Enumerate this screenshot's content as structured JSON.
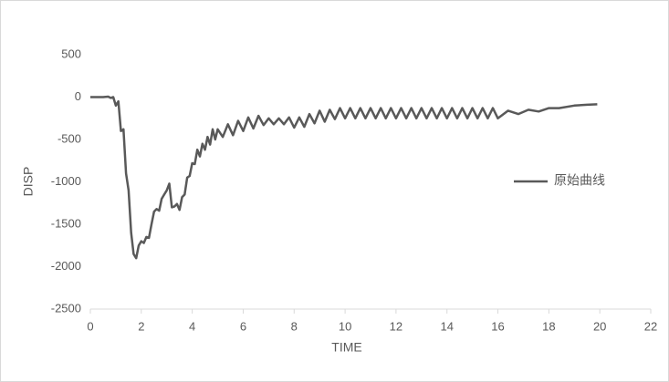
{
  "chart_data": {
    "type": "line",
    "x_label": "TIME",
    "y_label": "DISP",
    "x": [
      0,
      0.5,
      0.7,
      0.8,
      0.9,
      1.0,
      1.1,
      1.2,
      1.3,
      1.4,
      1.5,
      1.6,
      1.7,
      1.8,
      1.9,
      2.0,
      2.1,
      2.2,
      2.3,
      2.4,
      2.5,
      2.6,
      2.7,
      2.8,
      2.9,
      3.0,
      3.1,
      3.2,
      3.3,
      3.4,
      3.5,
      3.6,
      3.7,
      3.8,
      3.9,
      4.0,
      4.1,
      4.2,
      4.3,
      4.4,
      4.5,
      4.6,
      4.7,
      4.8,
      4.9,
      5.0,
      5.2,
      5.4,
      5.6,
      5.8,
      6.0,
      6.2,
      6.4,
      6.6,
      6.8,
      7.0,
      7.2,
      7.4,
      7.6,
      7.8,
      8.0,
      8.2,
      8.4,
      8.6,
      8.8,
      9.0,
      9.2,
      9.4,
      9.6,
      9.8,
      10.0,
      10.2,
      10.4,
      10.6,
      10.8,
      11.0,
      11.2,
      11.4,
      11.6,
      11.8,
      12.0,
      12.2,
      12.4,
      12.6,
      12.8,
      13.0,
      13.2,
      13.4,
      13.6,
      13.8,
      14.0,
      14.2,
      14.4,
      14.6,
      14.8,
      15.0,
      15.2,
      15.4,
      15.6,
      15.8,
      16.0,
      16.4,
      16.8,
      17.2,
      17.6,
      18.0,
      18.4,
      19.0,
      19.5,
      19.9
    ],
    "series": [
      {
        "name": "原始曲线",
        "color": "#595959",
        "values": [
          0,
          0,
          5,
          -10,
          0,
          -100,
          -50,
          -400,
          -380,
          -900,
          -1100,
          -1600,
          -1850,
          -1900,
          -1750,
          -1700,
          -1720,
          -1650,
          -1660,
          -1500,
          -1350,
          -1320,
          -1340,
          -1200,
          -1150,
          -1100,
          -1020,
          -1300,
          -1290,
          -1260,
          -1330,
          -1180,
          -1150,
          -950,
          -930,
          -780,
          -790,
          -620,
          -700,
          -550,
          -620,
          -470,
          -560,
          -380,
          -500,
          -380,
          -470,
          -320,
          -450,
          -280,
          -400,
          -240,
          -370,
          -220,
          -330,
          -250,
          -320,
          -250,
          -320,
          -240,
          -360,
          -240,
          -350,
          -200,
          -310,
          -160,
          -290,
          -150,
          -260,
          -130,
          -250,
          -130,
          -250,
          -130,
          -250,
          -130,
          -250,
          -130,
          -250,
          -130,
          -250,
          -130,
          -250,
          -130,
          -250,
          -130,
          -250,
          -130,
          -250,
          -130,
          -250,
          -130,
          -250,
          -130,
          -250,
          -130,
          -250,
          -130,
          -250,
          -130,
          -250,
          -160,
          -200,
          -150,
          -170,
          -130,
          -130,
          -100,
          -90,
          -85
        ]
      }
    ],
    "xlim": [
      0,
      22
    ],
    "xticks": [
      0,
      2,
      4,
      6,
      8,
      10,
      12,
      14,
      16,
      18,
      20,
      22
    ],
    "ylim": [
      -2500,
      500
    ],
    "yticks": [
      -2500,
      -2000,
      -1500,
      -1000,
      -500,
      0,
      500
    ],
    "grid": false,
    "legend": "right"
  }
}
